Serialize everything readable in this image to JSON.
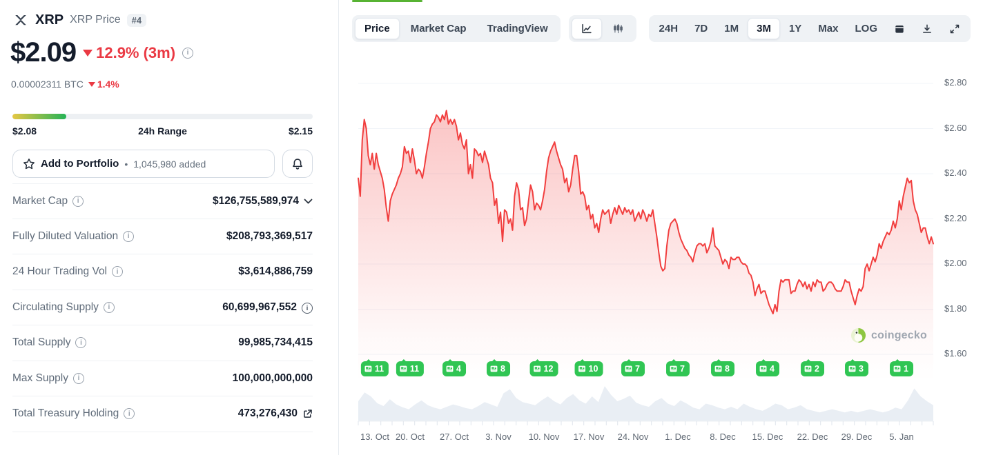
{
  "header": {
    "coin_symbol": "XRP",
    "coin_label": "XRP Price",
    "rank": "#4"
  },
  "price": {
    "value": "$2.09",
    "change": "12.9% (3m)",
    "change_direction": "down",
    "btc_value": "0.00002311 BTC",
    "btc_change": "1.4%"
  },
  "range": {
    "low": "$2.08",
    "label": "24h Range",
    "high": "$2.15",
    "fill_pct": 18
  },
  "portfolio": {
    "label": "Add to Portfolio",
    "bullet": "•",
    "added": "1,045,980 added"
  },
  "stats": [
    {
      "label": "Market Cap",
      "value": "$126,755,589,974",
      "trailing": "chevron-down"
    },
    {
      "label": "Fully Diluted Valuation",
      "value": "$208,793,369,517",
      "trailing": null
    },
    {
      "label": "24 Hour Trading Vol",
      "value": "$3,614,886,759",
      "trailing": null
    },
    {
      "label": "Circulating Supply",
      "value": "60,699,967,552",
      "trailing": "info"
    },
    {
      "label": "Total Supply",
      "value": "99,985,734,415",
      "trailing": null
    },
    {
      "label": "Max Supply",
      "value": "100,000,000,000",
      "trailing": null
    },
    {
      "label": "Total Treasury Holding",
      "value": "473,276,430",
      "trailing": "external-link"
    }
  ],
  "toolbar": {
    "tabs": [
      "Price",
      "Market Cap",
      "TradingView"
    ],
    "active_tab": "Price",
    "chart_types": [
      "line-chart",
      "candlestick-chart"
    ],
    "active_chart_type": "line-chart",
    "ranges": [
      "24H",
      "7D",
      "1M",
      "3M",
      "1Y",
      "Max",
      "LOG"
    ],
    "active_range": "3M"
  },
  "watermark": "coingecko",
  "colors": {
    "accent_red": "#ea3943",
    "line_red": "#f13e3e",
    "badge_green": "#30c553",
    "indicator_green": "#57b333",
    "range_gradient_start": "#e6c744",
    "range_gradient_end": "#24b356"
  },
  "chart_data": {
    "type": "line",
    "title": "XRP price, 3 month range",
    "currency": "USD",
    "grid": "horizontal",
    "legend_position": "none",
    "y_ticks": [
      "$2.80",
      "$2.60",
      "$2.40",
      "$2.20",
      "$2.00",
      "$1.80",
      "$1.60"
    ],
    "y_range": [
      1.6,
      2.8
    ],
    "x_labels": [
      "13. Oct",
      "20. Oct",
      "27. Oct",
      "3. Nov",
      "10. Nov",
      "17. Nov",
      "24. Nov",
      "1. Dec",
      "8. Dec",
      "15. Dec",
      "22. Dec",
      "29. Dec",
      "5. Jan"
    ],
    "news_badge_counts": [
      11,
      11,
      4,
      8,
      12,
      10,
      7,
      7,
      8,
      4,
      2,
      3,
      1
    ],
    "series": [
      {
        "name": "XRP price",
        "color": "#f13e3e",
        "values": [
          2.38,
          2.3,
          2.55,
          2.64,
          2.6,
          2.48,
          2.44,
          2.49,
          2.42,
          2.49,
          2.44,
          2.41,
          2.38,
          2.33,
          2.25,
          2.19,
          2.28,
          2.31,
          2.33,
          2.35,
          2.38,
          2.4,
          2.43,
          2.52,
          2.49,
          2.5,
          2.45,
          2.51,
          2.46,
          2.4,
          2.42,
          2.41,
          2.38,
          2.43,
          2.49,
          2.54,
          2.6,
          2.62,
          2.63,
          2.66,
          2.65,
          2.63,
          2.66,
          2.64,
          2.68,
          2.62,
          2.64,
          2.62,
          2.64,
          2.61,
          2.55,
          2.58,
          2.53,
          2.51,
          2.55,
          2.4,
          2.44,
          2.38,
          2.51,
          2.5,
          2.48,
          2.49,
          2.45,
          2.5,
          2.47,
          2.44,
          2.38,
          2.36,
          2.26,
          2.29,
          2.18,
          2.23,
          2.1,
          2.24,
          2.23,
          2.18,
          2.2,
          2.15,
          2.3,
          2.36,
          2.33,
          2.24,
          2.25,
          2.17,
          2.2,
          2.28,
          2.35,
          2.32,
          2.24,
          2.27,
          2.26,
          2.24,
          2.28,
          2.33,
          2.41,
          2.47,
          2.5,
          2.52,
          2.54,
          2.5,
          2.47,
          2.44,
          2.42,
          2.36,
          2.38,
          2.32,
          2.35,
          2.42,
          2.48,
          2.48,
          2.41,
          2.31,
          2.32,
          2.3,
          2.24,
          2.26,
          2.2,
          2.22,
          2.16,
          2.18,
          2.14,
          2.2,
          2.24,
          2.22,
          2.23,
          2.24,
          2.18,
          2.22,
          2.25,
          2.22,
          2.26,
          2.24,
          2.22,
          2.25,
          2.23,
          2.24,
          2.22,
          2.24,
          2.19,
          2.21,
          2.23,
          2.2,
          2.24,
          2.22,
          2.19,
          2.22,
          2.21,
          2.24,
          2.18,
          2.12,
          2.05,
          1.99,
          1.97,
          1.98,
          2.08,
          2.15,
          2.18,
          2.19,
          2.2,
          2.18,
          2.14,
          2.11,
          2.09,
          2.07,
          2.06,
          2.04,
          2.03,
          2.01,
          2.05,
          2.08,
          2.09,
          2.09,
          2.08,
          2.09,
          2.05,
          2.07,
          2.1,
          2.16,
          2.08,
          2.07,
          2.06,
          2.03,
          2.0,
          2.02,
          2.01,
          1.98,
          2.03,
          2.02,
          2.02,
          2.03,
          2.03,
          2.01,
          2.0,
          2.0,
          1.99,
          1.96,
          1.95,
          1.92,
          1.86,
          1.89,
          1.91,
          1.87,
          1.88,
          1.88,
          1.85,
          1.82,
          1.8,
          1.78,
          1.82,
          1.79,
          1.88,
          1.93,
          1.92,
          1.93,
          1.93,
          1.93,
          1.87,
          1.88,
          1.88,
          1.91,
          1.93,
          1.92,
          1.9,
          1.92,
          1.89,
          1.91,
          1.88,
          1.92,
          1.9,
          1.93,
          1.92,
          1.92,
          1.88,
          1.89,
          1.91,
          1.92,
          1.92,
          1.91,
          1.89,
          1.88,
          1.88,
          1.88,
          1.9,
          1.93,
          1.92,
          1.92,
          1.88,
          1.85,
          1.82,
          1.86,
          1.89,
          1.88,
          1.9,
          1.98,
          2.0,
          1.97,
          2.0,
          2.03,
          2.01,
          2.04,
          2.09,
          2.07,
          2.1,
          2.12,
          2.14,
          2.13,
          2.15,
          2.19,
          2.16,
          2.2,
          2.28,
          2.24,
          2.3,
          2.34,
          2.38,
          2.36,
          2.37,
          2.28,
          2.24,
          2.22,
          2.18,
          2.14,
          2.16,
          2.16,
          2.12,
          2.09,
          2.12,
          2.09
        ]
      }
    ],
    "volume_relative": [
      0.5,
      0.72,
      0.62,
      0.45,
      0.38,
      0.55,
      0.42,
      0.35,
      0.3,
      0.42,
      0.52,
      0.4,
      0.34,
      0.3,
      0.36,
      0.42,
      0.38,
      0.33,
      0.3,
      0.38,
      0.48,
      0.42,
      0.36,
      0.7,
      0.8,
      0.58,
      0.48,
      0.44,
      0.4,
      0.52,
      0.62,
      0.5,
      0.42,
      0.58,
      0.68,
      0.52,
      0.44,
      0.62,
      0.48,
      0.88,
      0.66,
      0.5,
      0.56,
      0.64,
      0.46,
      0.4,
      0.36,
      0.5,
      0.58,
      0.44,
      0.38,
      0.52,
      0.44,
      0.34,
      0.3,
      0.44,
      0.4,
      0.34,
      0.3,
      0.36,
      0.3,
      0.44,
      0.36,
      0.3,
      0.26,
      0.34,
      0.44,
      0.4,
      0.3,
      0.34,
      0.4,
      0.3,
      0.26,
      0.22,
      0.26,
      0.3,
      0.26,
      0.22,
      0.26,
      0.22,
      0.26,
      0.3,
      0.26,
      0.22,
      0.26,
      0.34,
      0.3,
      0.52,
      0.82,
      0.62,
      0.5,
      0.4
    ]
  }
}
